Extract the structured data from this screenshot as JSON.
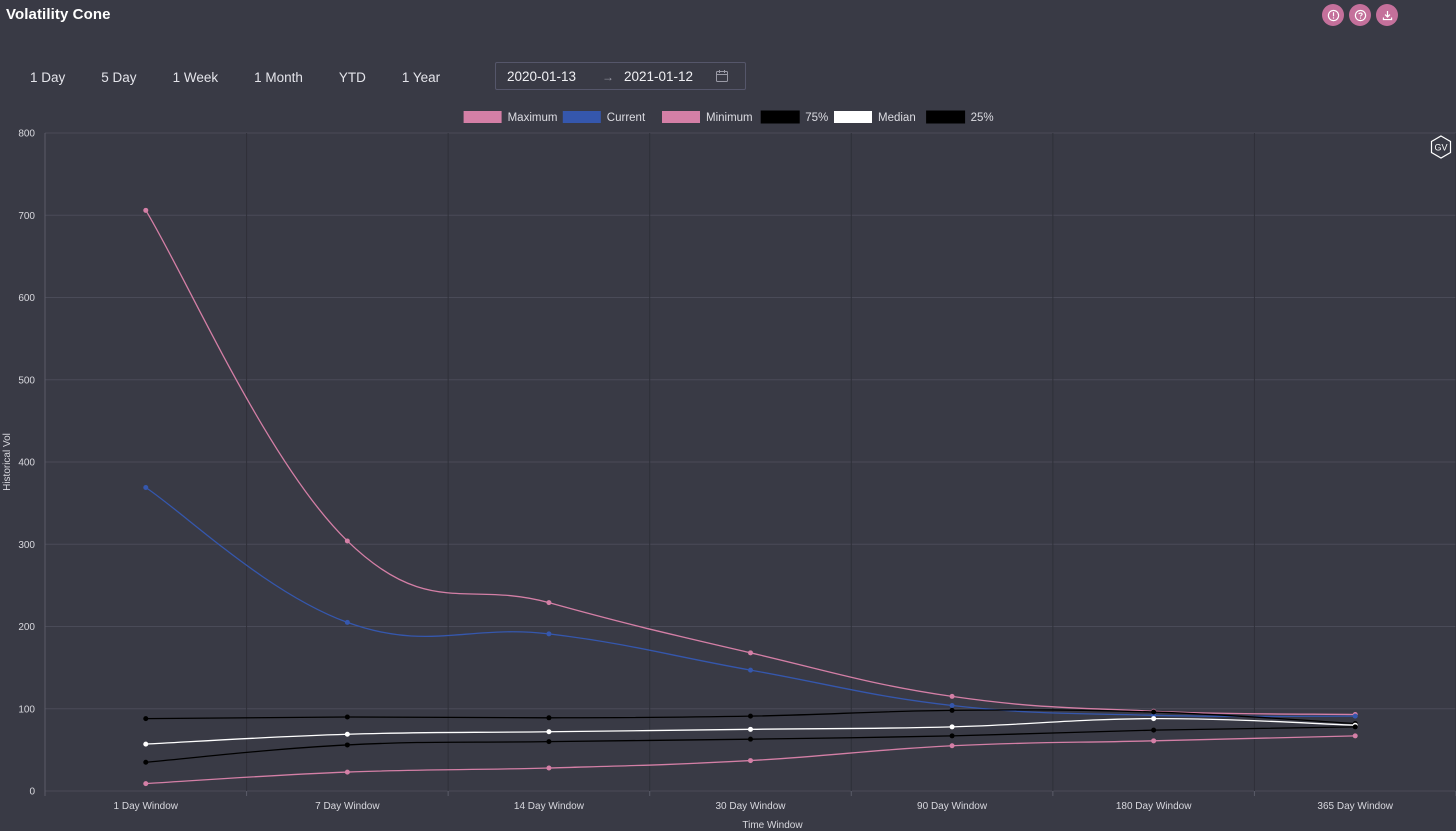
{
  "app": {
    "title": "Volatility Cone"
  },
  "actions": [
    {
      "name": "info-button",
      "icon": "info-icon"
    },
    {
      "name": "help-button",
      "icon": "question-icon"
    },
    {
      "name": "download-button",
      "icon": "download-icon"
    }
  ],
  "range_buttons": [
    "1 Day",
    "5 Day",
    "1 Week",
    "1 Month",
    "YTD",
    "1 Year"
  ],
  "date_range": {
    "start": "2020-01-13",
    "separator": "→",
    "end": "2021-01-12"
  },
  "badge": {
    "label": "GV"
  },
  "colors": {
    "background": "#393a45",
    "accent": "#c4709b",
    "maximum": "#d47fa6",
    "current": "#3557ad",
    "minimum": "#d47fa6",
    "p75": "#000000",
    "median": "#ffffff",
    "p25": "#000000"
  },
  "chart_data": {
    "type": "line",
    "title": "",
    "xlabel": "Time Window",
    "ylabel": "Historical Vol",
    "ylim": [
      0,
      800
    ],
    "yticks": [
      0,
      100,
      200,
      300,
      400,
      500,
      600,
      700,
      800
    ],
    "grid": true,
    "legend_position": "top",
    "categories": [
      "1 Day Window",
      "7 Day Window",
      "14 Day Window",
      "30 Day Window",
      "90 Day Window",
      "180 Day Window",
      "365 Day Window"
    ],
    "series": [
      {
        "name": "Maximum",
        "color": "#d47fa6",
        "values": [
          706,
          304,
          229,
          168,
          115,
          97,
          93
        ]
      },
      {
        "name": "Current",
        "color": "#3557ad",
        "values": [
          369,
          205,
          191,
          147,
          104,
          92,
          91
        ]
      },
      {
        "name": "Minimum",
        "color": "#d47fa6",
        "values": [
          9,
          23,
          28,
          37,
          55,
          61,
          67
        ]
      },
      {
        "name": "75%",
        "color": "#000000",
        "values": [
          88,
          90,
          89,
          91,
          98,
          96,
          82
        ]
      },
      {
        "name": "Median",
        "color": "#ffffff",
        "values": [
          57,
          69,
          72,
          75,
          78,
          88,
          80
        ]
      },
      {
        "name": "25%",
        "color": "#000000",
        "values": [
          35,
          56,
          60,
          63,
          67,
          74,
          78
        ]
      }
    ]
  }
}
